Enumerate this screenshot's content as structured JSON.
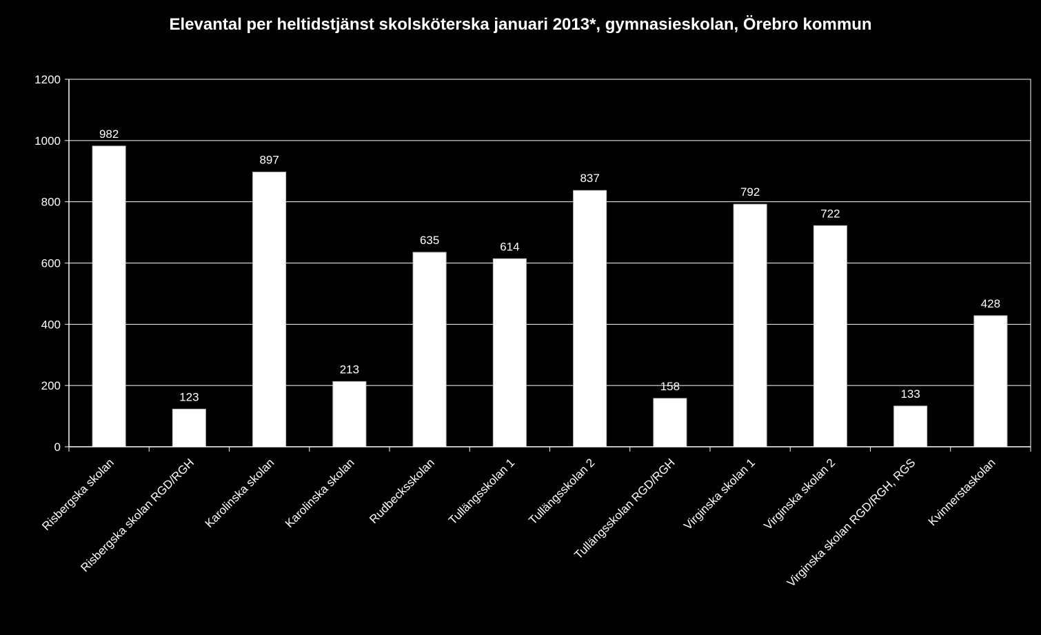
{
  "chart_data": {
    "type": "bar",
    "title": "Elevantal per heltidstjänst skolsköterska januari 2013*, gymnasieskolan, Örebro kommun",
    "xlabel": "",
    "ylabel": "",
    "ylim": [
      0,
      1200
    ],
    "yticks": [
      "0",
      "200",
      "400",
      "600",
      "800",
      "1000",
      "1200"
    ],
    "grid": true,
    "legend": "none",
    "categories": [
      "Risbergska skolan",
      "Risbergska skolan RGD/RGH",
      "Karolinska skolan",
      "Karolinska skolan",
      "Rudbecksskolan",
      "Tullängsskolan 1",
      "Tullängsskolan 2",
      "Tullängsskolan RGD/RGH",
      "Virginska skolan 1",
      "Virginska skolan 2",
      "Virginska skolan RGD/RGH, RGS",
      "Kvinnerstaskolan"
    ],
    "values": [
      982,
      123,
      897,
      213,
      635,
      614,
      837,
      158,
      792,
      722,
      133,
      428
    ],
    "colors": {
      "background": "#000000",
      "bar": "#ffffff",
      "axis": "#ffffff",
      "text": "#ffffff"
    }
  }
}
